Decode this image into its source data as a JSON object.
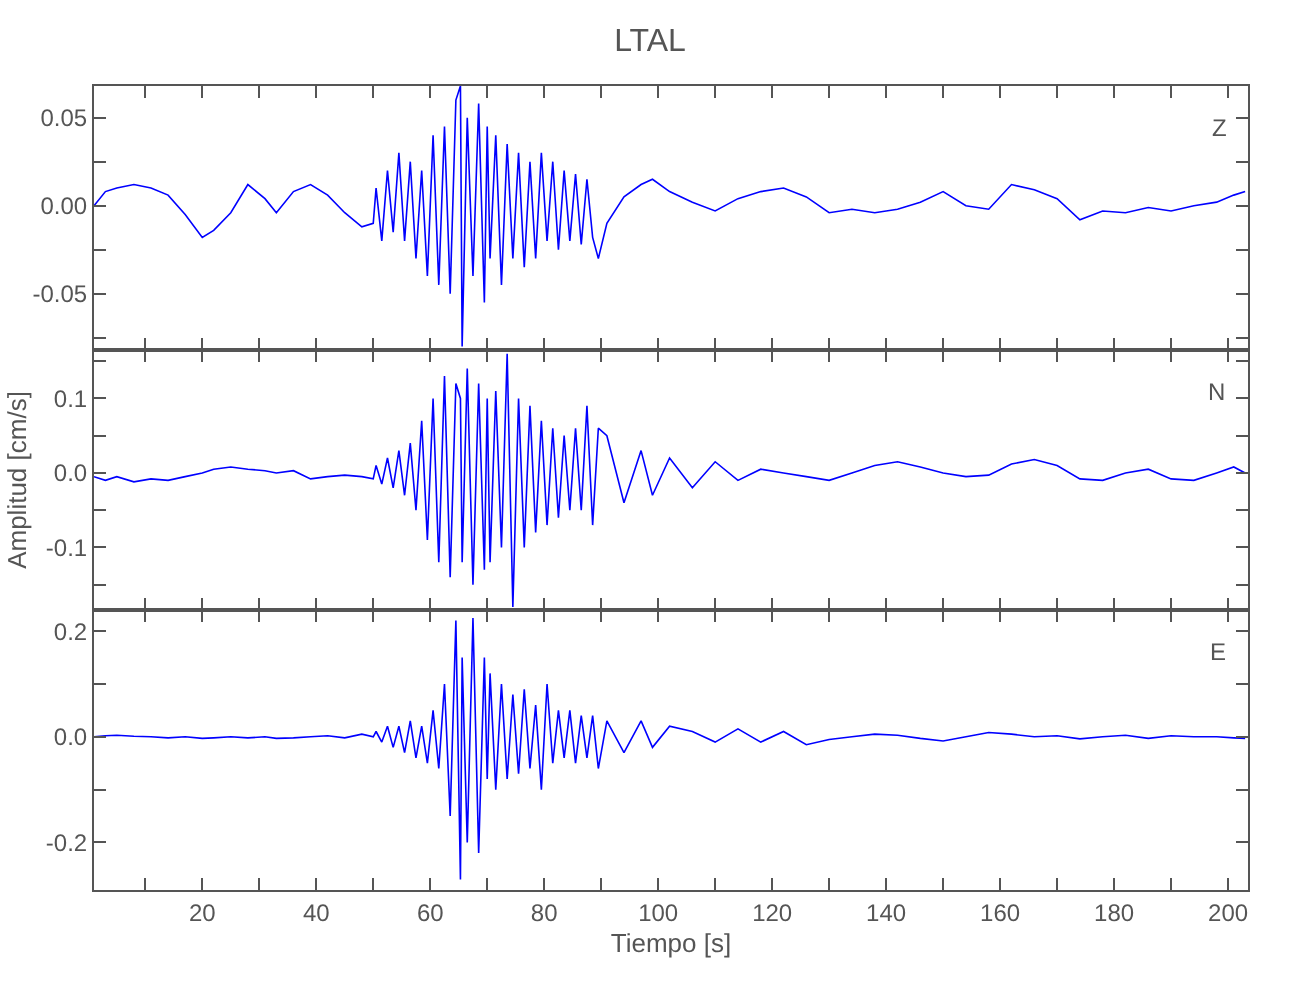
{
  "chart_data": [
    {
      "type": "line",
      "title": "LTAL",
      "annotations": [
        "Z"
      ],
      "tick_labels": "y",
      "xlim": [
        1,
        203.5
      ],
      "ylim": [
        -0.082,
        0.068
      ],
      "xticks": [
        {
          "value": 10,
          "label": null
        },
        20,
        {
          "value": 30,
          "label": null
        },
        40,
        {
          "value": 50,
          "label": null
        },
        60,
        {
          "value": 70,
          "label": null
        },
        80,
        {
          "value": 90,
          "label": null
        },
        100,
        {
          "value": 110,
          "label": null
        },
        120,
        {
          "value": 130,
          "label": null
        },
        140,
        {
          "value": 150,
          "label": null
        },
        160,
        {
          "value": 170,
          "label": null
        },
        180,
        {
          "value": 190,
          "label": null
        },
        200
      ],
      "yticks": [
        {
          "value": -0.075,
          "label": null
        },
        -0.05,
        {
          "value": -0.025,
          "label": null
        },
        {
          "value": 0,
          "label": "0.00"
        },
        {
          "value": 0.025,
          "label": null
        },
        0.05
      ],
      "series": [
        {
          "color": "#0000ff",
          "x": [
            1,
            3,
            5,
            8,
            11,
            14,
            17,
            20,
            22,
            25,
            28,
            31,
            33,
            36,
            39,
            42,
            45,
            48,
            50,
            50.5,
            51.5,
            52.5,
            53.5,
            54.5,
            55.5,
            56.5,
            57.5,
            58.5,
            59.5,
            60.5,
            61.5,
            62.5,
            63.5,
            64.5,
            65.3,
            65.6,
            66.5,
            67.5,
            68.5,
            69.5,
            70,
            70.5,
            71.5,
            72.5,
            73.5,
            74.5,
            75.5,
            76.5,
            77.5,
            78.5,
            79.5,
            80.5,
            81.5,
            82.5,
            83.5,
            84.5,
            85.5,
            86.5,
            87.5,
            88.5,
            89.5,
            91,
            94,
            97,
            99,
            102,
            106,
            110,
            114,
            118,
            122,
            126,
            130,
            134,
            138,
            142,
            146,
            150,
            154,
            158,
            162,
            166,
            170,
            174,
            178,
            182,
            186,
            190,
            194,
            198,
            201,
            203
          ],
          "values": [
            0,
            0.008,
            0.01,
            0.012,
            0.01,
            0.006,
            -0.005,
            -0.018,
            -0.014,
            -0.004,
            0.012,
            0.004,
            -0.004,
            0.008,
            0.012,
            0.006,
            -0.004,
            -0.012,
            -0.01,
            0.01,
            -0.02,
            0.02,
            -0.015,
            0.03,
            -0.02,
            0.025,
            -0.03,
            0.02,
            -0.04,
            0.04,
            -0.045,
            0.045,
            -0.05,
            0.06,
            0.068,
            -0.08,
            0.05,
            -0.04,
            0.058,
            -0.055,
            0.045,
            -0.03,
            0.04,
            -0.045,
            0.035,
            -0.03,
            0.03,
            -0.035,
            0.025,
            -0.03,
            0.03,
            -0.02,
            0.025,
            -0.025,
            0.02,
            -0.02,
            0.018,
            -0.022,
            0.015,
            -0.018,
            -0.03,
            -0.01,
            0.005,
            0.012,
            0.015,
            0.008,
            0.002,
            -0.003,
            0.004,
            0.008,
            0.01,
            0.005,
            -0.004,
            -0.002,
            -0.004,
            -0.002,
            0.002,
            0.008,
            0.0,
            -0.002,
            0.012,
            0.009,
            0.004,
            -0.008,
            -0.003,
            -0.004,
            -0.001,
            -0.003,
            0.0,
            0.002,
            0.006,
            0.008
          ]
        }
      ]
    },
    {
      "type": "line",
      "ylabel": "Amplitud [cm/s]",
      "annotations": [
        "N"
      ],
      "tick_labels": "y",
      "xlim": [
        1,
        203.5
      ],
      "ylim": [
        -0.184,
        0.165
      ],
      "xticks": [
        {
          "value": 10,
          "label": null
        },
        20,
        {
          "value": 30,
          "label": null
        },
        40,
        {
          "value": 50,
          "label": null
        },
        60,
        {
          "value": 70,
          "label": null
        },
        80,
        {
          "value": 90,
          "label": null
        },
        100,
        {
          "value": 110,
          "label": null
        },
        120,
        {
          "value": 130,
          "label": null
        },
        140,
        {
          "value": 150,
          "label": null
        },
        160,
        {
          "value": 170,
          "label": null
        },
        180,
        {
          "value": 190,
          "label": null
        },
        200
      ],
      "yticks": [
        {
          "value": -0.15,
          "label": null
        },
        -0.1,
        {
          "value": -0.05,
          "label": null
        },
        {
          "value": 0,
          "label": "0.0"
        },
        {
          "value": 0.05,
          "label": null
        },
        0.1,
        {
          "value": 0.15,
          "label": null
        }
      ],
      "series": [
        {
          "color": "#0000ff",
          "x": [
            1,
            3,
            5,
            8,
            11,
            14,
            17,
            20,
            22,
            25,
            28,
            31,
            33,
            36,
            39,
            42,
            45,
            48,
            50,
            50.5,
            51.5,
            52.5,
            53.5,
            54.5,
            55.5,
            56.5,
            57.5,
            58.5,
            59.5,
            60.5,
            61.5,
            62.5,
            63.5,
            64.5,
            65.3,
            65.6,
            66.5,
            67.5,
            68.5,
            69.5,
            70,
            70.5,
            71.5,
            72.5,
            73.5,
            74.5,
            75.5,
            76.5,
            77.5,
            78.5,
            79.5,
            80.5,
            81.5,
            82.5,
            83.5,
            84.5,
            85.5,
            86.5,
            87.5,
            88.5,
            89.5,
            91,
            94,
            97,
            99,
            102,
            106,
            110,
            114,
            118,
            122,
            126,
            130,
            134,
            138,
            142,
            146,
            150,
            154,
            158,
            162,
            166,
            170,
            174,
            178,
            182,
            186,
            190,
            194,
            198,
            201,
            203
          ],
          "values": [
            -0.005,
            -0.01,
            -0.005,
            -0.012,
            -0.008,
            -0.01,
            -0.005,
            0.0,
            0.005,
            0.008,
            0.005,
            0.003,
            0.0,
            0.003,
            -0.008,
            -0.005,
            -0.003,
            -0.005,
            -0.008,
            0.01,
            -0.015,
            0.02,
            -0.02,
            0.03,
            -0.03,
            0.04,
            -0.05,
            0.07,
            -0.09,
            0.1,
            -0.12,
            0.13,
            -0.14,
            0.12,
            0.1,
            -0.12,
            0.14,
            -0.15,
            0.12,
            -0.13,
            0.1,
            -0.12,
            0.11,
            -0.1,
            0.16,
            -0.18,
            0.1,
            -0.1,
            0.09,
            -0.08,
            0.07,
            -0.07,
            0.06,
            -0.06,
            0.05,
            -0.05,
            0.06,
            -0.05,
            0.09,
            -0.07,
            0.06,
            0.05,
            -0.04,
            0.03,
            -0.03,
            0.02,
            -0.02,
            0.015,
            -0.01,
            0.005,
            0.0,
            -0.005,
            -0.01,
            0.0,
            0.01,
            0.015,
            0.008,
            0.0,
            -0.005,
            -0.003,
            0.012,
            0.018,
            0.01,
            -0.008,
            -0.01,
            0.0,
            0.005,
            -0.008,
            -0.01,
            0.0,
            0.008,
            0.0
          ]
        }
      ]
    },
    {
      "type": "line",
      "xlabel": "Tiempo [s]",
      "annotations": [
        "E"
      ],
      "xlim": [
        1,
        203.5
      ],
      "ylim": [
        -0.29,
        0.24
      ],
      "xticks": [
        {
          "value": 10,
          "label": null
        },
        20,
        {
          "value": 30,
          "label": null
        },
        40,
        {
          "value": 50,
          "label": null
        },
        60,
        {
          "value": 70,
          "label": null
        },
        80,
        {
          "value": 90,
          "label": null
        },
        100,
        {
          "value": 110,
          "label": null
        },
        120,
        {
          "value": 130,
          "label": null
        },
        140,
        {
          "value": 150,
          "label": null
        },
        160,
        {
          "value": 170,
          "label": null
        },
        180,
        {
          "value": 190,
          "label": null
        },
        200
      ],
      "yticks": [
        -0.2,
        {
          "value": -0.1,
          "label": null
        },
        {
          "value": 0,
          "label": "0.0"
        },
        {
          "value": 0.1,
          "label": null
        },
        0.2
      ],
      "series": [
        {
          "color": "#0000ff",
          "x": [
            1,
            3,
            5,
            8,
            11,
            14,
            17,
            20,
            22,
            25,
            28,
            31,
            33,
            36,
            39,
            42,
            45,
            48,
            50,
            50.5,
            51.5,
            52.5,
            53.5,
            54.5,
            55.5,
            56.5,
            57.5,
            58.5,
            59.5,
            60.5,
            61.5,
            62.5,
            63.5,
            64.5,
            65.3,
            65.6,
            66.5,
            67.5,
            68.5,
            69.5,
            70,
            70.5,
            71.5,
            72.5,
            73.5,
            74.5,
            75.5,
            76.5,
            77.5,
            78.5,
            79.5,
            80.5,
            81.5,
            82.5,
            83.5,
            84.5,
            85.5,
            86.5,
            87.5,
            88.5,
            89.5,
            91,
            94,
            97,
            99,
            102,
            106,
            110,
            114,
            118,
            122,
            126,
            130,
            134,
            138,
            142,
            146,
            150,
            154,
            158,
            162,
            166,
            170,
            174,
            178,
            182,
            186,
            190,
            194,
            198,
            201,
            203
          ],
          "values": [
            0,
            0.002,
            0.003,
            0.001,
            0.0,
            -0.002,
            0.0,
            -0.003,
            -0.002,
            0.0,
            -0.002,
            0.0,
            -0.003,
            -0.002,
            0.0,
            0.002,
            -0.002,
            0.005,
            0.0,
            0.01,
            -0.01,
            0.02,
            -0.02,
            0.02,
            -0.03,
            0.03,
            -0.04,
            0.02,
            -0.05,
            0.05,
            -0.06,
            0.1,
            -0.15,
            0.22,
            -0.27,
            0.15,
            -0.2,
            0.225,
            -0.22,
            0.15,
            -0.08,
            0.12,
            -0.1,
            0.1,
            -0.08,
            0.08,
            -0.07,
            0.09,
            -0.06,
            0.06,
            -0.1,
            0.1,
            -0.05,
            0.05,
            -0.04,
            0.05,
            -0.05,
            0.04,
            -0.04,
            0.04,
            -0.06,
            0.03,
            -0.03,
            0.03,
            -0.02,
            0.02,
            0.01,
            -0.01,
            0.015,
            -0.01,
            0.01,
            -0.015,
            -0.005,
            0.0,
            0.005,
            0.003,
            -0.003,
            -0.008,
            0.0,
            0.008,
            0.005,
            0.0,
            0.002,
            -0.004,
            0.0,
            0.003,
            -0.003,
            0.002,
            0.0,
            0.0,
            -0.002,
            -0.003
          ]
        }
      ]
    }
  ]
}
